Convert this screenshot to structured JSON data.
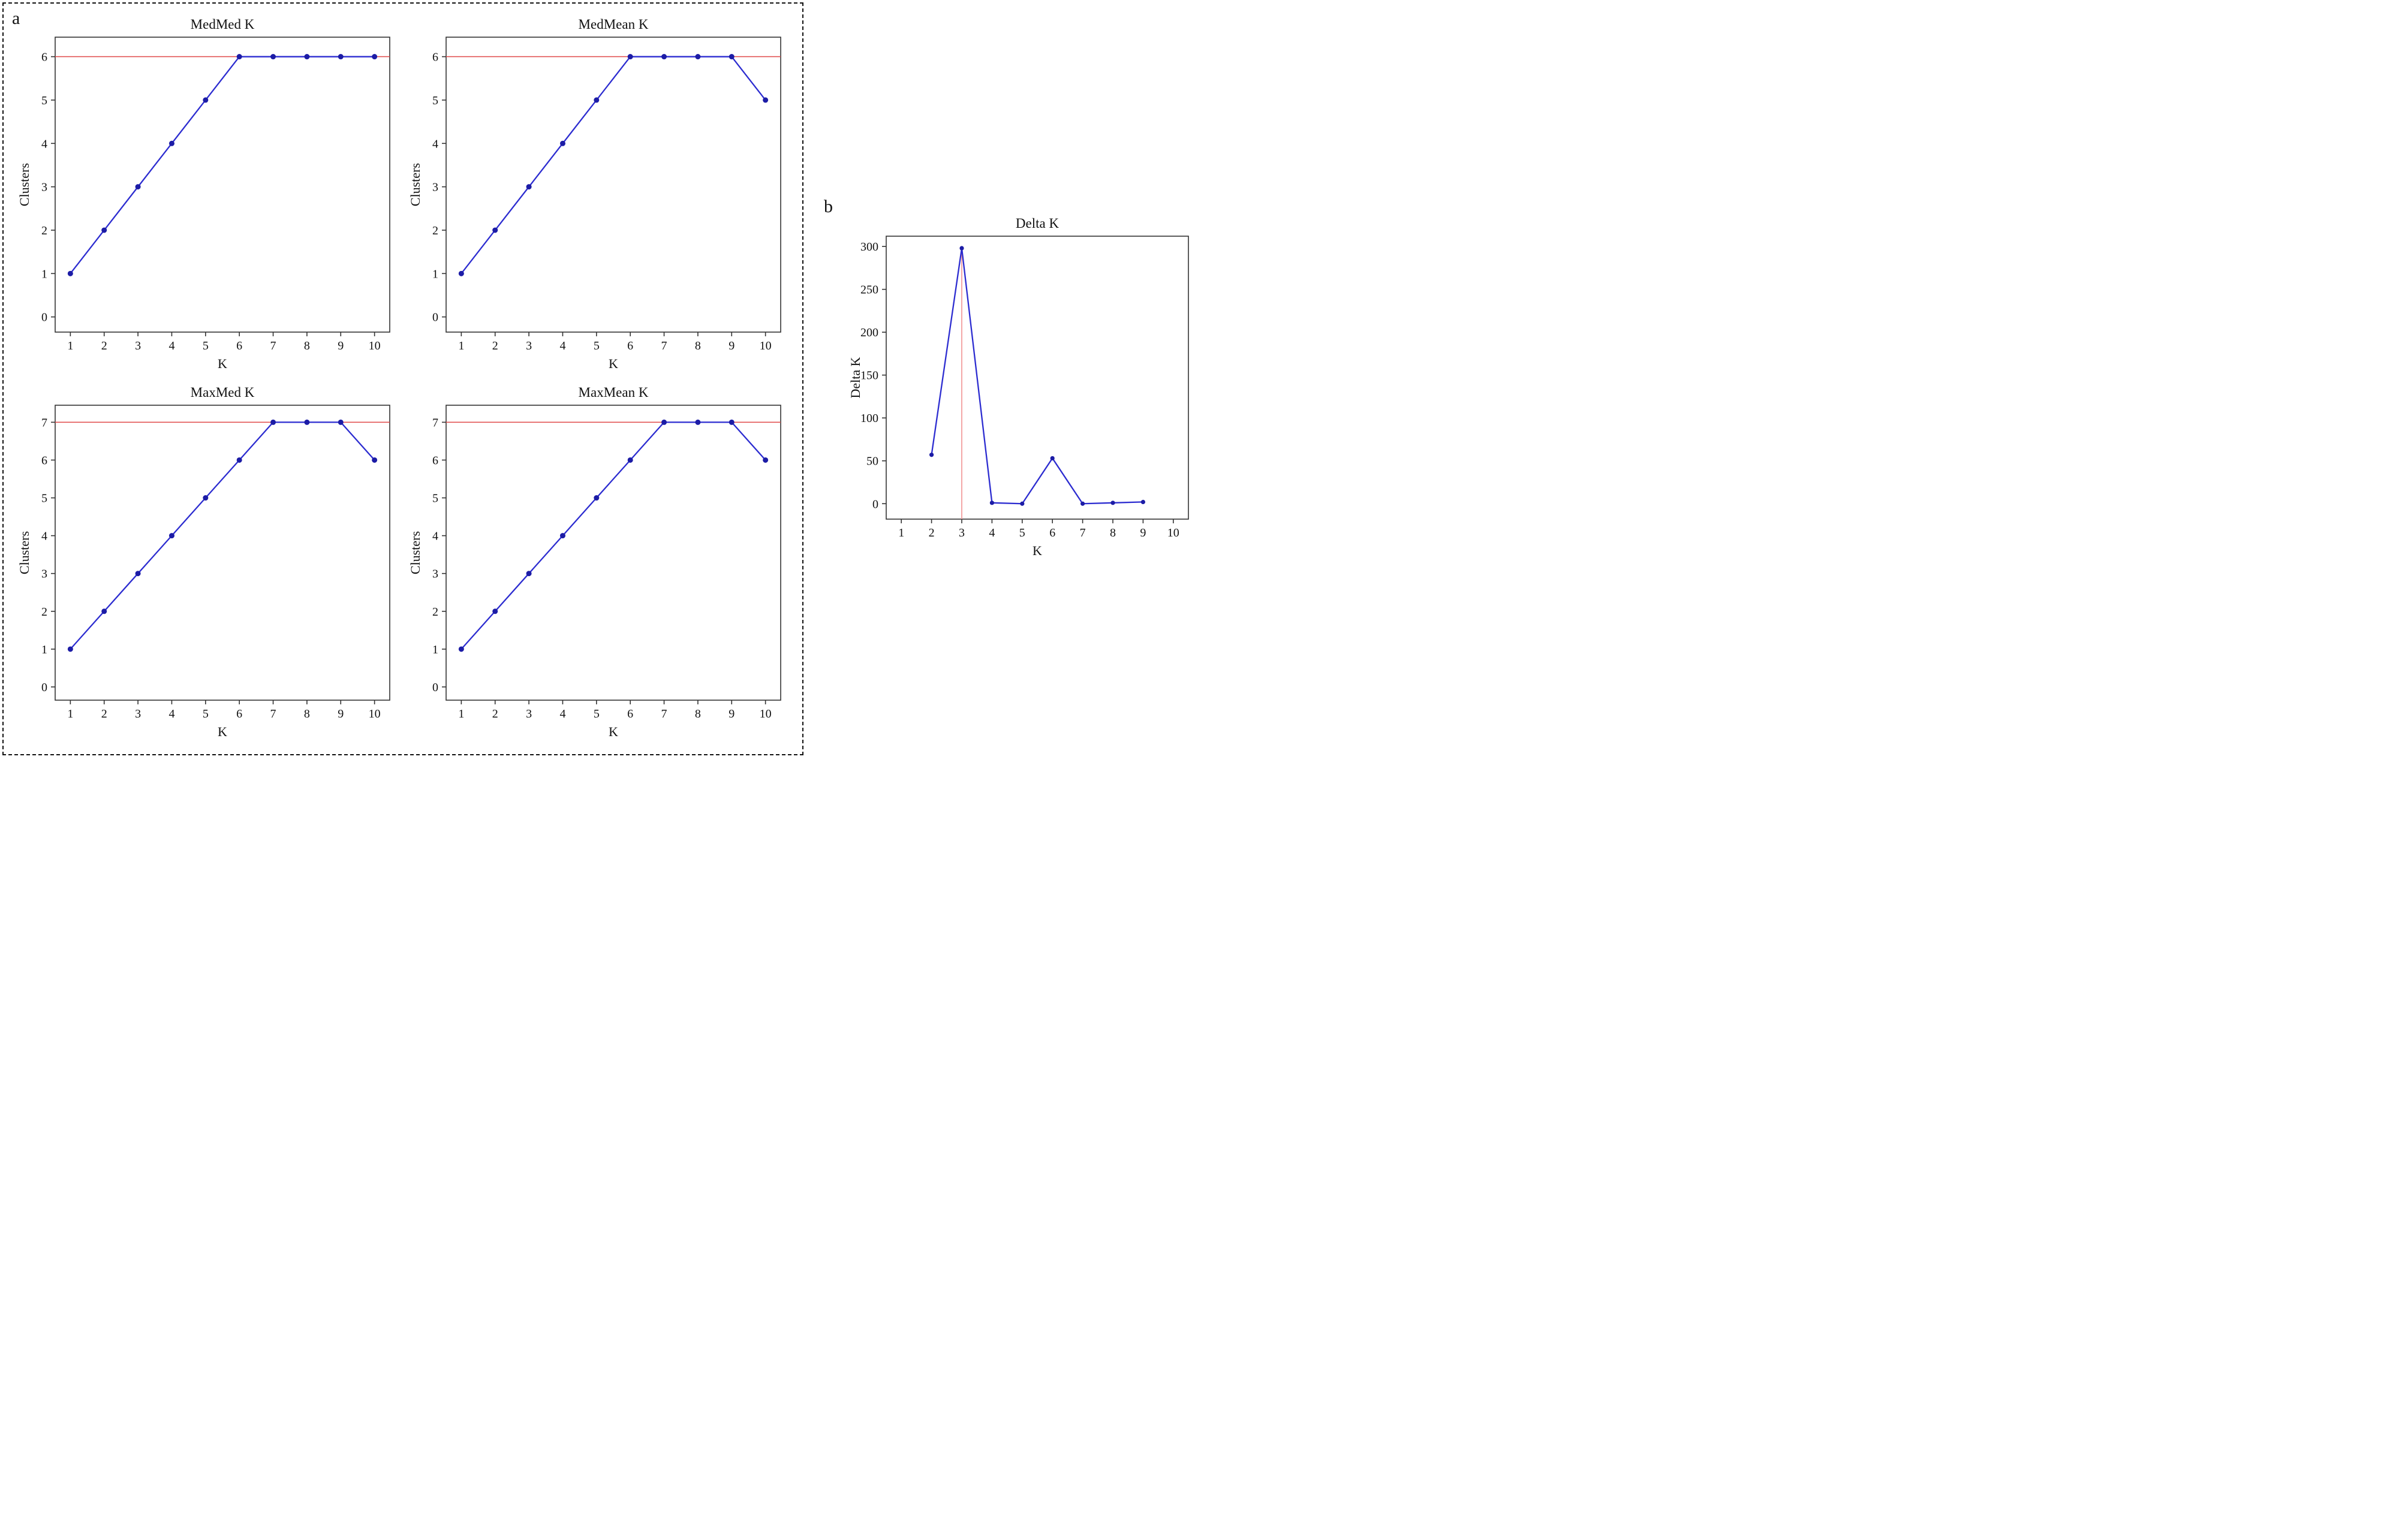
{
  "panels": {
    "a_label": "a",
    "b_label": "b"
  },
  "style": {
    "line_color": "#2c2cd0",
    "point_color": "#1c1ca6",
    "href_color": "#e04848",
    "vref_color": "#f08a8a",
    "frame_color": "#333333"
  },
  "chart_data": [
    {
      "type": "line",
      "title": "MedMed K",
      "xlabel": "K",
      "ylabel": "Clusters",
      "x": [
        1,
        2,
        3,
        4,
        5,
        6,
        7,
        8,
        9,
        10
      ],
      "values": [
        1,
        2,
        3,
        4,
        5,
        6,
        6,
        6,
        6,
        6
      ],
      "xticks": [
        1,
        2,
        3,
        4,
        5,
        6,
        7,
        8,
        9,
        10
      ],
      "yticks": [
        0,
        1,
        2,
        3,
        4,
        5,
        6
      ],
      "xlim": [
        0.55,
        10.45
      ],
      "ylim": [
        -0.35,
        6.45
      ],
      "grid": false,
      "legend": false,
      "ref_line": {
        "orientation": "horizontal",
        "value": 6
      }
    },
    {
      "type": "line",
      "title": "MedMean K",
      "xlabel": "K",
      "ylabel": "Clusters",
      "x": [
        1,
        2,
        3,
        4,
        5,
        6,
        7,
        8,
        9,
        10
      ],
      "values": [
        1,
        2,
        3,
        4,
        5,
        6,
        6,
        6,
        6,
        5
      ],
      "xticks": [
        1,
        2,
        3,
        4,
        5,
        6,
        7,
        8,
        9,
        10
      ],
      "yticks": [
        0,
        1,
        2,
        3,
        4,
        5,
        6
      ],
      "xlim": [
        0.55,
        10.45
      ],
      "ylim": [
        -0.35,
        6.45
      ],
      "grid": false,
      "legend": false,
      "ref_line": {
        "orientation": "horizontal",
        "value": 6
      }
    },
    {
      "type": "line",
      "title": "MaxMed K",
      "xlabel": "K",
      "ylabel": "Clusters",
      "x": [
        1,
        2,
        3,
        4,
        5,
        6,
        7,
        8,
        9,
        10
      ],
      "values": [
        1,
        2,
        3,
        4,
        5,
        6,
        7,
        7,
        7,
        6
      ],
      "xticks": [
        1,
        2,
        3,
        4,
        5,
        6,
        7,
        8,
        9,
        10
      ],
      "yticks": [
        0,
        1,
        2,
        3,
        4,
        5,
        6,
        7
      ],
      "xlim": [
        0.55,
        10.45
      ],
      "ylim": [
        -0.35,
        7.45
      ],
      "grid": false,
      "legend": false,
      "ref_line": {
        "orientation": "horizontal",
        "value": 7
      }
    },
    {
      "type": "line",
      "title": "MaxMean K",
      "xlabel": "K",
      "ylabel": "Clusters",
      "x": [
        1,
        2,
        3,
        4,
        5,
        6,
        7,
        8,
        9,
        10
      ],
      "values": [
        1,
        2,
        3,
        4,
        5,
        6,
        7,
        7,
        7,
        6
      ],
      "xticks": [
        1,
        2,
        3,
        4,
        5,
        6,
        7,
        8,
        9,
        10
      ],
      "yticks": [
        0,
        1,
        2,
        3,
        4,
        5,
        6,
        7
      ],
      "xlim": [
        0.55,
        10.45
      ],
      "ylim": [
        -0.35,
        7.45
      ],
      "grid": false,
      "legend": false,
      "ref_line": {
        "orientation": "horizontal",
        "value": 7
      }
    },
    {
      "type": "line",
      "title": "Delta K",
      "xlabel": "K",
      "ylabel": "Delta K",
      "x": [
        2,
        3,
        4,
        5,
        6,
        7,
        8,
        9
      ],
      "values": [
        57,
        298,
        1,
        0,
        53,
        0,
        1,
        2
      ],
      "xticks": [
        1,
        2,
        3,
        4,
        5,
        6,
        7,
        8,
        9,
        10
      ],
      "yticks": [
        0,
        50,
        100,
        150,
        200,
        250,
        300
      ],
      "xlim": [
        0.5,
        10.5
      ],
      "ylim": [
        -18,
        312
      ],
      "grid": false,
      "legend": false,
      "ref_line": {
        "orientation": "vertical",
        "value": 3,
        "top": 298
      }
    }
  ]
}
